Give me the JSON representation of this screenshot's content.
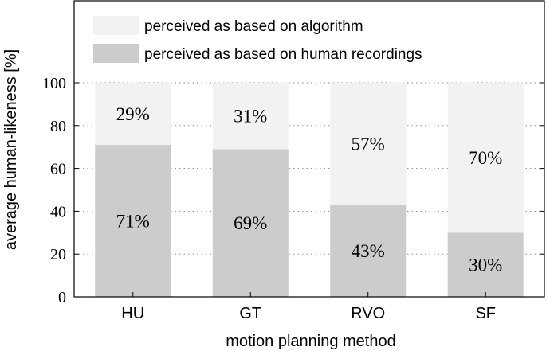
{
  "chart_data": {
    "type": "bar",
    "stacked": true,
    "categories": [
      "HU",
      "GT",
      "RVO",
      "SF"
    ],
    "series": [
      {
        "name": "perceived as based on human recordings",
        "values": [
          71,
          69,
          43,
          30
        ],
        "labels": [
          "71%",
          "69%",
          "43%",
          "30%"
        ],
        "color": "#cccccc"
      },
      {
        "name": "perceived as based on algorithm",
        "values": [
          29,
          31,
          57,
          70
        ],
        "labels": [
          "29%",
          "31%",
          "57%",
          "70%"
        ],
        "color": "#f2f2f2"
      }
    ],
    "xlabel": "motion planning method",
    "ylabel": "average human-likeness [%]",
    "ylim": [
      0,
      100
    ],
    "yticks": [
      0,
      20,
      40,
      60,
      80,
      100
    ],
    "grid": "horizontal dotted",
    "legend_position": "top-left inside"
  }
}
